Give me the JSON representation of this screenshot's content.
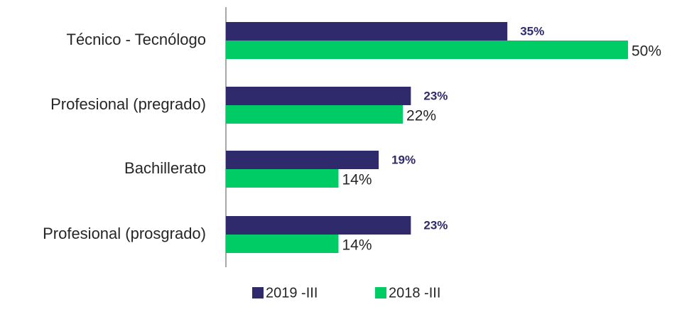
{
  "chart_data": {
    "type": "hbar",
    "categories": [
      "Técnico - Tecnólogo",
      "Profesional (pregrado)",
      "Bachillerato",
      "Profesional (prosgrado)"
    ],
    "series": [
      {
        "name": "2019 -III",
        "color": "#2e2a6b",
        "values": [
          35,
          23,
          19,
          23
        ],
        "value_labels": [
          "35%",
          "23%",
          "19%",
          "23%"
        ]
      },
      {
        "name": "2018 -III",
        "color": "#00cc66",
        "values": [
          50,
          22,
          14,
          14
        ],
        "value_labels": [
          "50%",
          "22%",
          "14%",
          "14%"
        ]
      }
    ],
    "legend": "bottom"
  }
}
